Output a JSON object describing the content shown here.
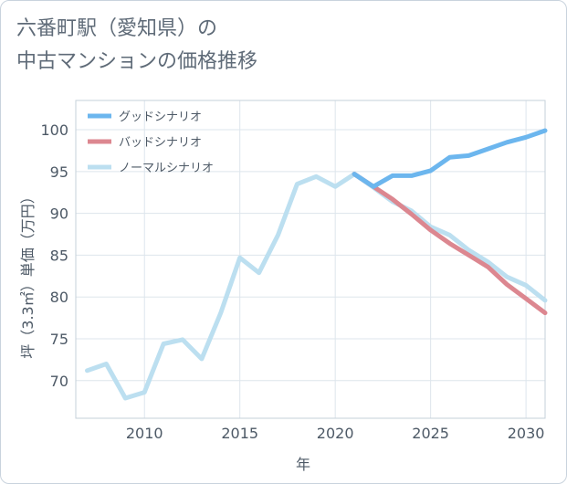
{
  "title": {
    "line1": "六番町駅（愛知県）の",
    "line2": "中古マンションの価格推移"
  },
  "chart_data": {
    "type": "line",
    "xlabel": "年",
    "ylabel": "坪（3.3㎡）単価（万円）",
    "xlim": [
      2006.4,
      2031
    ],
    "ylim": [
      65.5,
      103.5
    ],
    "xticks": [
      2010,
      2015,
      2020,
      2025,
      2030
    ],
    "yticks": [
      70,
      75,
      80,
      85,
      90,
      95,
      100
    ],
    "grid": true,
    "legend_position": "top-left",
    "series": [
      {
        "name": "グッドシナリオ",
        "color": "#6cb6ee",
        "x": [
          2021,
          2022,
          2023,
          2024,
          2025,
          2026,
          2027,
          2028,
          2029,
          2030,
          2031
        ],
        "y": [
          94.7,
          93.2,
          94.5,
          94.5,
          95.1,
          96.7,
          96.9,
          97.7,
          98.5,
          99.1,
          99.9
        ]
      },
      {
        "name": "バッドシナリオ",
        "color": "#dc8790",
        "x": [
          2021,
          2022,
          2023,
          2024,
          2025,
          2026,
          2027,
          2028,
          2029,
          2030,
          2031
        ],
        "y": [
          94.7,
          93.2,
          91.7,
          89.9,
          88.0,
          86.4,
          85.0,
          83.6,
          81.5,
          79.8,
          78.1
        ]
      },
      {
        "name": "ノーマルシナリオ",
        "color": "#bcdff0",
        "x": [
          2007,
          2008,
          2009,
          2010,
          2011,
          2012,
          2013,
          2014,
          2015,
          2016,
          2017,
          2018,
          2019,
          2020,
          2021,
          2022,
          2023,
          2024,
          2025,
          2026,
          2027,
          2028,
          2029,
          2030,
          2031
        ],
        "y": [
          71.2,
          72.0,
          67.9,
          68.6,
          74.4,
          74.9,
          72.6,
          78.1,
          84.7,
          82.9,
          87.4,
          93.5,
          94.4,
          93.2,
          94.7,
          93.1,
          91.4,
          90.3,
          88.4,
          87.4,
          85.6,
          84.2,
          82.4,
          81.4,
          79.6
        ]
      }
    ]
  }
}
